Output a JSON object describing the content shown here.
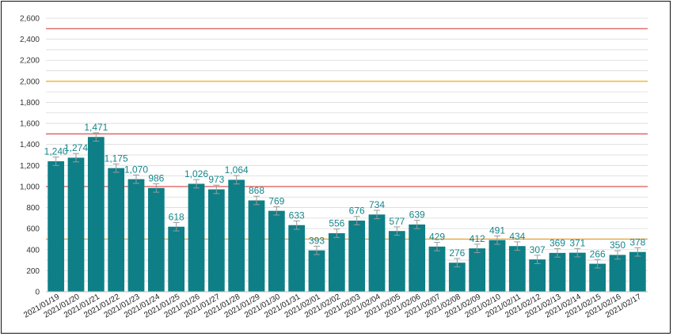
{
  "chart_data": {
    "type": "bar",
    "categories": [
      "2021/01/19",
      "2021/01/20",
      "2021/01/21",
      "2021/01/22",
      "2021/01/23",
      "2021/01/24",
      "2021/01/25",
      "2021/01/26",
      "2021/01/27",
      "2021/01/28",
      "2021/01/29",
      "2021/01/30",
      "2021/01/31",
      "2021/02/01",
      "2021/02/02",
      "2021/02/03",
      "2021/02/04",
      "2021/02/05",
      "2021/02/06",
      "2021/02/07",
      "2021/02/08",
      "2021/02/09",
      "2021/02/10",
      "2021/02/11",
      "2021/02/12",
      "2021/02/13",
      "2021/02/14",
      "2021/02/15",
      "2021/02/16",
      "2021/02/17"
    ],
    "values": [
      1240,
      1274,
      1471,
      1175,
      1070,
      986,
      618,
      1026,
      973,
      1064,
      868,
      769,
      633,
      393,
      556,
      676,
      734,
      577,
      639,
      429,
      276,
      412,
      491,
      434,
      307,
      369,
      371,
      266,
      350,
      378
    ],
    "data_labels": [
      "1,240",
      "1,274",
      "1,471",
      "1,175",
      "1,070",
      "986",
      "618",
      "1,026",
      "973",
      "1,064",
      "868",
      "769",
      "633",
      "393",
      "556",
      "676",
      "734",
      "577",
      "639",
      "429",
      "276",
      "412",
      "491",
      "434",
      "307",
      "369",
      "371",
      "266",
      "350",
      "378"
    ],
    "error_bar": 40,
    "ylim": [
      0,
      2600
    ],
    "ytick_step": 200,
    "ytick_labels": [
      "0",
      "200",
      "400",
      "600",
      "800",
      "1,000",
      "1,200",
      "1,400",
      "1,600",
      "1,800",
      "2,000",
      "2,200",
      "2,400",
      "2,600"
    ],
    "grid": true,
    "title": "",
    "xlabel": "",
    "ylabel": "",
    "reference_lines": [
      {
        "value": 2500,
        "color": "#e06666"
      },
      {
        "value": 2000,
        "color": "#f1b41b"
      },
      {
        "value": 1500,
        "color": "#e06666"
      },
      {
        "value": 1000,
        "color": "#e06666"
      },
      {
        "value": 500,
        "color": "#e6a53b"
      }
    ],
    "colors": {
      "bar": "#0e7f86",
      "label": "#16868c",
      "grid": "#d9d9d9",
      "axis": "#bfbfbf"
    }
  }
}
